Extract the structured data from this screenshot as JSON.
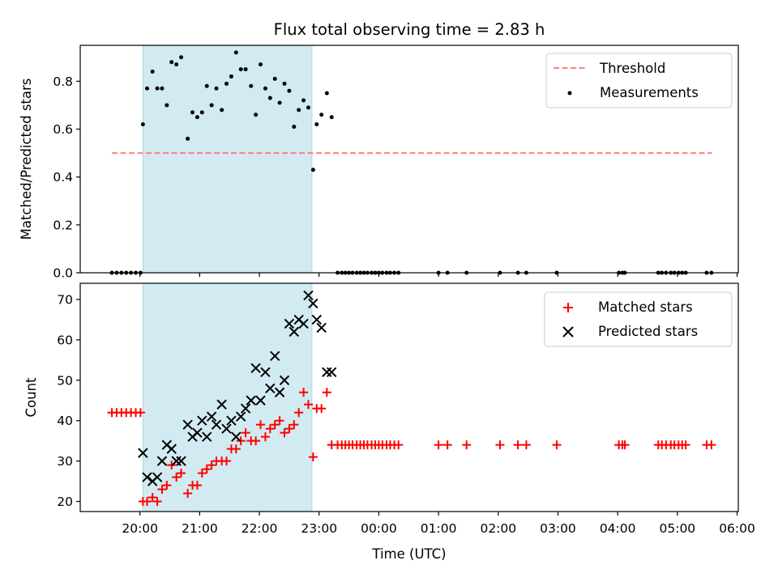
{
  "chart_data": {
    "title": "Flux total observing time = 2.83 h",
    "xlabel": "Time (UTC)",
    "x_ticks": [
      "20:00",
      "21:00",
      "22:00",
      "23:00",
      "00:00",
      "01:00",
      "02:00",
      "03:00",
      "04:00",
      "05:00",
      "06:00"
    ],
    "x_tick_hours": [
      20,
      21,
      22,
      23,
      24,
      25,
      26,
      27,
      28,
      29,
      30
    ],
    "xlim_hours": [
      19.0,
      30.02
    ],
    "shaded_interval_hours": [
      20.05,
      22.88
    ],
    "shade_color": "#add8e6",
    "panels": [
      {
        "type": "scatter",
        "ylabel": "Matched/Predicted stars",
        "ylim": [
          0,
          0.95
        ],
        "y_ticks": [
          0.0,
          0.2,
          0.4,
          0.6,
          0.8
        ],
        "y_tick_labels": [
          "0.0",
          "0.2",
          "0.4",
          "0.6",
          "0.8"
        ],
        "threshold": {
          "name": "Threshold",
          "value": 0.5,
          "x_range": [
            19.53,
            29.58
          ],
          "color": "#ff7f7f"
        },
        "series": [
          {
            "name": "Measurements",
            "color": "#000000",
            "marker": "dot",
            "x": [
              19.53,
              19.61,
              19.69,
              19.77,
              19.85,
              19.93,
              20.01,
              20.05,
              20.12,
              20.21,
              20.29,
              20.37,
              20.45,
              20.53,
              20.61,
              20.69,
              20.8,
              20.88,
              20.96,
              21.04,
              21.12,
              21.2,
              21.28,
              21.37,
              21.45,
              21.53,
              21.61,
              21.69,
              21.77,
              21.86,
              21.94,
              22.02,
              22.1,
              22.18,
              22.26,
              22.34,
              22.42,
              22.5,
              22.58,
              22.66,
              22.74,
              22.82,
              22.9,
              22.96,
              23.04,
              23.13,
              23.21,
              23.31,
              23.38,
              23.44,
              23.5,
              23.56,
              23.63,
              23.69,
              23.75,
              23.81,
              23.88,
              23.94,
              24.0,
              24.06,
              24.13,
              24.19,
              24.26,
              24.33,
              25.0,
              25.15,
              25.47,
              26.03,
              26.33,
              26.47,
              26.98,
              28.02,
              28.08,
              28.12,
              28.68,
              28.74,
              28.81,
              28.89,
              28.95,
              29.02,
              29.08,
              29.14,
              29.49,
              29.57
            ],
            "y": [
              0,
              0,
              0,
              0,
              0,
              0,
              0,
              0.62,
              0.77,
              0.84,
              0.77,
              0.77,
              0.7,
              0.88,
              0.87,
              0.9,
              0.56,
              0.67,
              0.65,
              0.67,
              0.78,
              0.7,
              0.77,
              0.68,
              0.79,
              0.82,
              0.92,
              0.85,
              0.85,
              0.78,
              0.66,
              0.87,
              0.77,
              0.73,
              0.81,
              0.71,
              0.79,
              0.76,
              0.61,
              0.68,
              0.72,
              0.69,
              0.43,
              0.62,
              0.66,
              0.75,
              0.65,
              0,
              0,
              0,
              0,
              0,
              0,
              0,
              0,
              0,
              0,
              0,
              0,
              0,
              0,
              0,
              0,
              0,
              0,
              0,
              0,
              0,
              0,
              0,
              0,
              0,
              0,
              0,
              0,
              0,
              0,
              0,
              0,
              0,
              0,
              0,
              0,
              0
            ]
          }
        ]
      },
      {
        "type": "scatter",
        "ylabel": "Count",
        "ylim": [
          17.5,
          74
        ],
        "y_ticks": [
          20,
          30,
          40,
          50,
          60,
          70
        ],
        "y_tick_labels": [
          "20",
          "30",
          "40",
          "50",
          "60",
          "70"
        ],
        "series": [
          {
            "name": "Matched stars",
            "color": "#ff0000",
            "marker": "plus",
            "x": [
              19.53,
              19.61,
              19.69,
              19.77,
              19.85,
              19.93,
              20.01,
              20.05,
              20.12,
              20.21,
              20.29,
              20.37,
              20.45,
              20.53,
              20.61,
              20.69,
              20.8,
              20.88,
              20.96,
              21.04,
              21.12,
              21.2,
              21.28,
              21.37,
              21.45,
              21.53,
              21.61,
              21.69,
              21.77,
              21.86,
              21.94,
              22.02,
              22.1,
              22.18,
              22.26,
              22.34,
              22.42,
              22.5,
              22.58,
              22.66,
              22.74,
              22.82,
              22.9,
              22.96,
              23.04,
              23.13,
              23.21,
              23.31,
              23.38,
              23.44,
              23.5,
              23.56,
              23.63,
              23.69,
              23.75,
              23.81,
              23.88,
              23.94,
              24.0,
              24.06,
              24.13,
              24.19,
              24.26,
              24.33,
              25.0,
              25.15,
              25.47,
              26.03,
              26.33,
              26.47,
              26.98,
              28.02,
              28.08,
              28.12,
              28.68,
              28.74,
              28.81,
              28.89,
              28.95,
              29.02,
              29.08,
              29.14,
              29.49,
              29.57
            ],
            "y": [
              42,
              42,
              42,
              42,
              42,
              42,
              42,
              20,
              20,
              21,
              20,
              23,
              24,
              29,
              26,
              27,
              22,
              24,
              24,
              27,
              28,
              29,
              30,
              30,
              30,
              33,
              33,
              35,
              37,
              35,
              35,
              39,
              36,
              38,
              39,
              40,
              37,
              38,
              39,
              42,
              47,
              44,
              31,
              43,
              43,
              47,
              34,
              34,
              34,
              34,
              34,
              34,
              34,
              34,
              34,
              34,
              34,
              34,
              34,
              34,
              34,
              34,
              34,
              34,
              34,
              34,
              34,
              34,
              34,
              34,
              34,
              34,
              34,
              34,
              34,
              34,
              34,
              34,
              34,
              34,
              34,
              34,
              34,
              34
            ]
          },
          {
            "name": "Predicted stars",
            "color": "#000000",
            "marker": "x",
            "x": [
              20.05,
              20.12,
              20.21,
              20.29,
              20.37,
              20.45,
              20.53,
              20.61,
              20.69,
              20.8,
              20.88,
              20.96,
              21.04,
              21.12,
              21.2,
              21.28,
              21.37,
              21.45,
              21.53,
              21.61,
              21.69,
              21.77,
              21.86,
              21.94,
              22.02,
              22.1,
              22.18,
              22.26,
              22.34,
              22.42,
              22.5,
              22.58,
              22.66,
              22.74,
              22.82,
              22.9,
              22.96,
              23.04,
              23.13,
              23.21
            ],
            "y": [
              32,
              26,
              25,
              26,
              30,
              34,
              33,
              30,
              30,
              39,
              36,
              37,
              40,
              36,
              41,
              39,
              44,
              38,
              40,
              36,
              41,
              43,
              45,
              53,
              45,
              52,
              48,
              56,
              47,
              50,
              64,
              62,
              65,
              64,
              71,
              69,
              65,
              63,
              52,
              52
            ]
          }
        ]
      }
    ],
    "legends": [
      {
        "entries": [
          "Threshold",
          "Measurements"
        ],
        "placement": "upper right"
      },
      {
        "entries": [
          "Matched stars",
          "Predicted stars"
        ],
        "placement": "upper right"
      }
    ]
  }
}
